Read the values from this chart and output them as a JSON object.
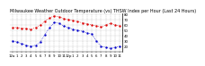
{
  "title": "Milwaukee Weather Outdoor Temperature (vs) THSW Index per Hour (Last 24 Hours)",
  "outdoor_temp": [
    55,
    55,
    54,
    53,
    52,
    55,
    60,
    67,
    73,
    77,
    75,
    72,
    70,
    68,
    66,
    64,
    62,
    60,
    58,
    56,
    60,
    63,
    60,
    58
  ],
  "thsw_index": [
    30,
    28,
    25,
    22,
    20,
    22,
    28,
    42,
    55,
    65,
    63,
    58,
    55,
    52,
    50,
    48,
    45,
    43,
    30,
    20,
    18,
    16,
    18,
    20
  ],
  "hours": [
    "12a",
    "1",
    "2",
    "3",
    "4",
    "5",
    "6",
    "7",
    "8",
    "9",
    "10",
    "11",
    "12p",
    "1",
    "2",
    "3",
    "4",
    "5",
    "6",
    "7",
    "8",
    "9",
    "10",
    "11"
  ],
  "temp_color": "#dd0000",
  "thsw_color": "#0000cc",
  "bg_color": "#ffffff",
  "grid_color": "#aaaaaa",
  "ytick_color": "#000000",
  "ylim_min": 10,
  "ylim_max": 82,
  "yticks": [
    20,
    30,
    40,
    50,
    60,
    70,
    80
  ],
  "title_fontsize": 3.5,
  "tick_fontsize": 2.8,
  "marker_size": 1.4,
  "line_width": 0.5
}
